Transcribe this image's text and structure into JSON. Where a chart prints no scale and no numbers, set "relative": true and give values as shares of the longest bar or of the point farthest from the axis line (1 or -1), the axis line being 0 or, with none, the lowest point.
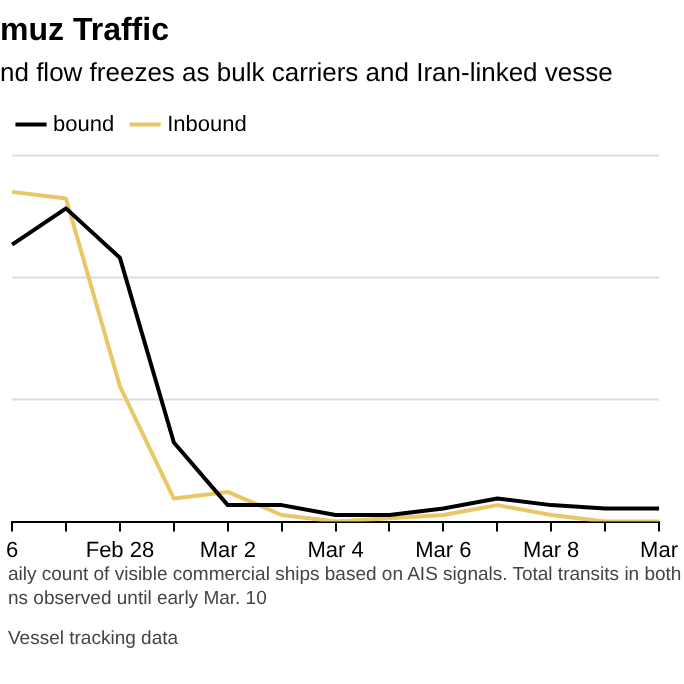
{
  "chart_data": {
    "type": "line",
    "title": "muz Traffic",
    "subtitle": "nd flow freezes as bulk carriers and Iran-linked vesse",
    "categories": [
      "6",
      null,
      "Feb 28",
      null,
      "Mar 2",
      null,
      "Mar 4",
      null,
      "Mar 6",
      null,
      "Mar 8",
      null,
      "Mar"
    ],
    "series": [
      {
        "name": "bound",
        "color": "#000000",
        "values": [
          0.84,
          0.95,
          0.8,
          0.24,
          0.05,
          0.05,
          0.02,
          0.02,
          0.04,
          0.07,
          0.05,
          0.04,
          0.04
        ]
      },
      {
        "name": "Inbound",
        "color": "#e8c766",
        "values": [
          1,
          0.98,
          0.41,
          0.07,
          0.09,
          0.02,
          0,
          0.01,
          0.02,
          0.05,
          0.02,
          0,
          0
        ]
      }
    ],
    "relative": true,
    "legend": "top left",
    "ref_lines": [
      {
        "axis": "y",
        "value": 0.37,
        "color": "#dddddd"
      },
      {
        "axis": "y",
        "value": 0.74,
        "color": "#dddddd"
      },
      {
        "axis": "y",
        "value": 1.11,
        "color": "#dddddd"
      }
    ],
    "marker": "none",
    "line_style": "solid",
    "annotations": [
      "aily count of visible commercial ships based on AIS signals. Total transits in both\nns observed until early Mar. 10",
      "Vessel tracking data"
    ]
  }
}
